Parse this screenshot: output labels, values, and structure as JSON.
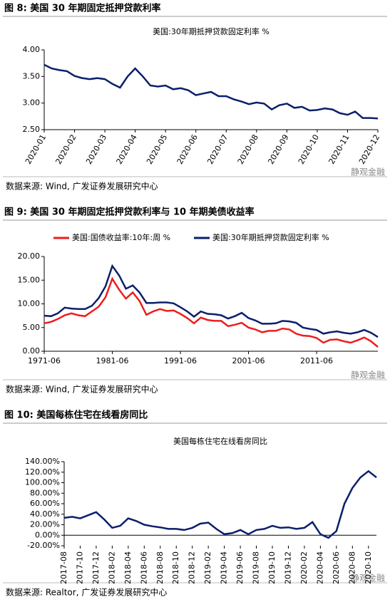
{
  "chart_data": [
    {
      "type": "line",
      "figure_title": "图 8:  美国 30 年期固定抵押贷款利率",
      "title": "美国:30年期抵押贷款固定利率 %",
      "source": "数据来源:  Wind, 广发证券发展研究中心",
      "watermark": "静观金融",
      "color": "#0b1f6b",
      "categories": [
        "2020-01",
        null,
        null,
        null,
        "2020-02",
        null,
        null,
        null,
        "2020-03",
        null,
        null,
        null,
        "2020-04",
        null,
        null,
        null,
        "2020-05",
        null,
        null,
        null,
        "2020-06",
        null,
        null,
        null,
        "2020-07",
        null,
        null,
        null,
        "2020-08",
        null,
        null,
        null,
        "2020-09",
        null,
        null,
        null,
        "2020-10",
        null,
        null,
        null,
        "2020-11",
        null,
        null,
        null,
        "2020-12"
      ],
      "values": [
        3.72,
        3.65,
        3.62,
        3.6,
        3.51,
        3.47,
        3.45,
        3.47,
        3.45,
        3.36,
        3.29,
        3.5,
        3.65,
        3.5,
        3.33,
        3.31,
        3.33,
        3.26,
        3.28,
        3.24,
        3.15,
        3.18,
        3.21,
        3.13,
        3.13,
        3.07,
        3.03,
        2.98,
        3.01,
        2.99,
        2.88,
        2.96,
        2.99,
        2.91,
        2.93,
        2.86,
        2.87,
        2.9,
        2.88,
        2.81,
        2.78,
        2.84,
        2.72,
        2.72,
        2.71
      ],
      "ylim": [
        2.5,
        4.0
      ],
      "yticks": [
        {
          "value": 2.5,
          "label": "2.50"
        },
        {
          "value": 3,
          "label": "3.00"
        },
        {
          "value": 3.5,
          "label": "3.50"
        },
        {
          "value": 4,
          "label": "4.00"
        }
      ]
    },
    {
      "type": "line",
      "figure_title": "图 9:  美国 30 年期固定抵押贷款利率与 10 年期美债收益率",
      "source": "数据来源:  Wind, 广发证券发展研究中心",
      "watermark": "静观金融",
      "categories": [
        "1971-06",
        null,
        null,
        null,
        null,
        null,
        null,
        null,
        null,
        null,
        "1981-06",
        null,
        null,
        null,
        null,
        null,
        null,
        null,
        null,
        null,
        "1991-06",
        null,
        null,
        null,
        null,
        null,
        null,
        null,
        null,
        null,
        "2001-06",
        null,
        null,
        null,
        null,
        null,
        null,
        null,
        null,
        null,
        "2011-06",
        null,
        null,
        null,
        null,
        null,
        null,
        null,
        null,
        null
      ],
      "series": [
        {
          "name": "美国:国债收益率:10年:周 %",
          "color": "#ee1c1c",
          "values": [
            5.9,
            6.2,
            6.8,
            7.6,
            8.0,
            7.6,
            7.4,
            8.4,
            9.4,
            11.4,
            15.3,
            13.0,
            11.1,
            12.4,
            10.6,
            7.7,
            8.4,
            8.9,
            8.5,
            8.6,
            7.9,
            7.0,
            5.9,
            7.1,
            6.6,
            6.4,
            6.4,
            5.3,
            5.6,
            6.0,
            5.0,
            4.6,
            4.0,
            4.3,
            4.3,
            4.8,
            4.6,
            3.7,
            3.3,
            3.2,
            2.8,
            1.8,
            2.4,
            2.5,
            2.1,
            1.8,
            2.3,
            2.9,
            2.1,
            0.9
          ]
        },
        {
          "name": "美国:30年期抵押贷款固定利率 %",
          "color": "#0b1f6b",
          "values": [
            7.5,
            7.4,
            8.0,
            9.2,
            9.0,
            8.9,
            8.9,
            9.6,
            11.2,
            13.7,
            18.0,
            16.0,
            13.2,
            13.9,
            12.4,
            10.2,
            10.2,
            10.3,
            10.3,
            10.1,
            9.3,
            8.4,
            7.3,
            8.4,
            7.9,
            7.8,
            7.6,
            6.9,
            7.4,
            8.1,
            7.0,
            6.5,
            5.8,
            5.8,
            5.9,
            6.4,
            6.3,
            6.0,
            5.0,
            4.7,
            4.5,
            3.7,
            4.0,
            4.2,
            3.9,
            3.7,
            4.0,
            4.5,
            3.9,
            3.0
          ]
        }
      ],
      "ylim": [
        0,
        20
      ],
      "yticks": [
        {
          "value": 0,
          "label": "0.00"
        },
        {
          "value": 5,
          "label": "5.00"
        },
        {
          "value": 10,
          "label": "10.00"
        },
        {
          "value": 15,
          "label": "15.00"
        },
        {
          "value": 20,
          "label": "20.00"
        }
      ]
    },
    {
      "type": "line",
      "figure_title": "图 10:  美国每栋住宅在线看房同比",
      "title": "美国每栋住宅在线看房同比",
      "source": "数据来源:  Realtor, 广发证券发展研究中心",
      "watermark": "静观金融",
      "color": "#0b1f6b",
      "categories": [
        "2017-08",
        null,
        "2017-10",
        null,
        "2017-12",
        null,
        "2018-02",
        null,
        "2018-04",
        null,
        "2018-06",
        null,
        "2018-08",
        null,
        "2018-10",
        null,
        "2018-12",
        null,
        "2019-02",
        null,
        "2019-04",
        null,
        "2019-06",
        null,
        "2019-08",
        null,
        "2019-10",
        null,
        "2019-12",
        null,
        "2020-02",
        null,
        "2020-04",
        null,
        "2020-06",
        null,
        "2020-08",
        null,
        "2020-10",
        null
      ],
      "values": [
        33,
        35,
        32,
        38,
        44,
        30,
        14,
        18,
        32,
        27,
        20,
        17,
        15,
        12,
        12,
        10,
        14,
        22,
        24,
        12,
        2,
        4,
        10,
        2,
        10,
        12,
        18,
        14,
        15,
        12,
        14,
        25,
        2,
        -5,
        8,
        60,
        90,
        110,
        122,
        110
      ],
      "ylim": [
        -20,
        140
      ],
      "yticks": [
        {
          "value": -20,
          "label": "-20.00%"
        },
        {
          "value": 0,
          "label": "0.00%"
        },
        {
          "value": 20,
          "label": "20.00%"
        },
        {
          "value": 40,
          "label": "40.00%"
        },
        {
          "value": 60,
          "label": "60.00%"
        },
        {
          "value": 80,
          "label": "80.00%"
        },
        {
          "value": 100,
          "label": "100.00%"
        },
        {
          "value": 120,
          "label": "120.00%"
        },
        {
          "value": 140,
          "label": "140.00%"
        }
      ]
    }
  ]
}
